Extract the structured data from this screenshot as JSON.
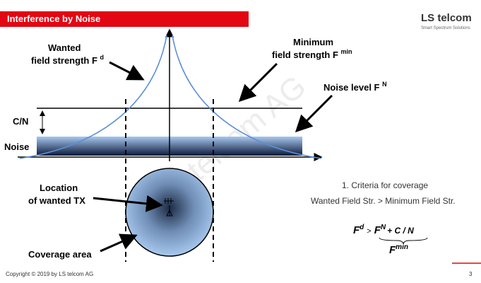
{
  "header": {
    "title": "Interference by Noise"
  },
  "logo": {
    "name": "LS telcom",
    "tagline": "Smart Spectrum Solutions"
  },
  "labels": {
    "wanted": {
      "line1": "Wanted",
      "line2": "field strength F",
      "sup": "d"
    },
    "minimum": {
      "line1": "Minimum",
      "line2": "field strength F",
      "sup": "min"
    },
    "noise_level": {
      "text": "Noise level F",
      "sup": "N"
    },
    "cn": "C/N",
    "noise": "Noise",
    "location": {
      "line1": "Location",
      "line2": "of wanted TX"
    },
    "coverage": "Coverage area"
  },
  "criteria": {
    "title": "1. Criteria for coverage",
    "rule": "Wanted Field Str. > Minimum Field Str."
  },
  "formula": {
    "f1": "F",
    "sup1": "d",
    "op": ">",
    "f2": "F",
    "sup2": "N",
    "plus": "+ C / N",
    "f3": "F",
    "sup3": "min"
  },
  "watermark": "LS telcom AG",
  "footer": {
    "copyright": "Copyright © 2019 by LS telcom AG",
    "page": "3"
  }
}
